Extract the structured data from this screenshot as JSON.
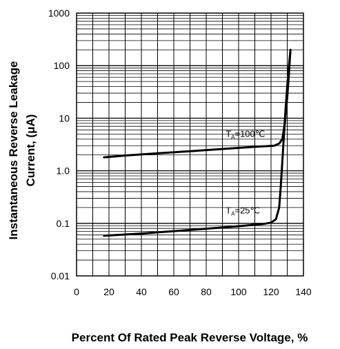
{
  "chart_data": {
    "type": "line",
    "title": "",
    "xlabel": "Percent Of Rated Peak Reverse Voltage, %",
    "ylabel_line1": "Instantaneous Reverse  Leakage",
    "ylabel_line2": "Current, (μA)",
    "xlim": [
      0,
      140
    ],
    "ylim": [
      0.01,
      1000
    ],
    "y_scale": "log",
    "grid": true,
    "x_ticks": [
      "0",
      "20",
      "40",
      "60",
      "80",
      "100",
      "120",
      "140"
    ],
    "y_ticks": [
      "0.01",
      "0.1",
      "1.0",
      "10",
      "100",
      "1000"
    ],
    "series": [
      {
        "name": "TA=100℃",
        "label_main": "T",
        "label_sub": "A",
        "label_rest": "=100℃",
        "label_at": [
          92,
          4.4
        ],
        "x": [
          17,
          30,
          50,
          70,
          90,
          110,
          122,
          125,
          127,
          128.5,
          130,
          131,
          132
        ],
        "y": [
          1.8,
          1.95,
          2.15,
          2.35,
          2.6,
          2.85,
          3.0,
          3.3,
          4.0,
          8,
          25,
          70,
          200
        ]
      },
      {
        "name": "TA=25℃",
        "label_main": "T",
        "label_sub": "A",
        "label_rest": "=25℃",
        "label_at": [
          92,
          0.155
        ],
        "x": [
          17,
          40,
          60,
          80,
          100,
          115,
          120,
          123,
          125,
          126,
          127,
          128,
          129,
          130,
          131,
          132
        ],
        "y": [
          0.058,
          0.064,
          0.071,
          0.079,
          0.088,
          0.097,
          0.103,
          0.12,
          0.2,
          0.5,
          1.5,
          5,
          15,
          40,
          100,
          200
        ]
      }
    ]
  }
}
